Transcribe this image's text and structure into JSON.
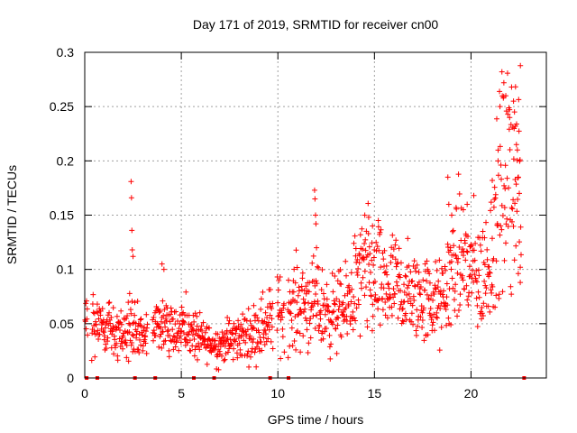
{
  "chart_data": {
    "type": "scatter",
    "title": "Day 171 of 2019, SRMTID for receiver cn00",
    "xlabel": "GPS time / hours",
    "ylabel": "SRMTID / TECUs",
    "xlim": [
      0,
      23.9
    ],
    "ylim": [
      0,
      0.3
    ],
    "xticks": [
      0,
      5,
      10,
      15,
      20
    ],
    "yticks": [
      0,
      0.05,
      0.1,
      0.15,
      0.2,
      0.25,
      0.3
    ],
    "xtick_labels": [
      "0",
      "5",
      "10",
      "15",
      "20"
    ],
    "ytick_labels": [
      "0",
      "0.05",
      "0.1",
      "0.15",
      "0.2",
      "0.25",
      "0.3"
    ],
    "grid": true,
    "marker": "plus",
    "color": "#ff0000",
    "series": [
      {
        "name": "SRMTID",
        "trend": [
          [
            0.0,
            0.055
          ],
          [
            0.5,
            0.05
          ],
          [
            1.0,
            0.042
          ],
          [
            1.5,
            0.045
          ],
          [
            2.0,
            0.04
          ],
          [
            2.5,
            0.05
          ],
          [
            3.0,
            0.035
          ],
          [
            3.5,
            0.045
          ],
          [
            4.0,
            0.052
          ],
          [
            4.5,
            0.05
          ],
          [
            5.0,
            0.047
          ],
          [
            5.5,
            0.043
          ],
          [
            6.0,
            0.035
          ],
          [
            6.5,
            0.032
          ],
          [
            7.0,
            0.03
          ],
          [
            7.5,
            0.035
          ],
          [
            8.0,
            0.038
          ],
          [
            8.5,
            0.04
          ],
          [
            9.0,
            0.045
          ],
          [
            9.5,
            0.052
          ],
          [
            10.0,
            0.06
          ],
          [
            10.5,
            0.062
          ],
          [
            11.0,
            0.068
          ],
          [
            11.5,
            0.07
          ],
          [
            12.0,
            0.065
          ],
          [
            12.5,
            0.062
          ],
          [
            13.0,
            0.06
          ],
          [
            13.5,
            0.062
          ],
          [
            14.0,
            0.085
          ],
          [
            14.5,
            0.095
          ],
          [
            15.0,
            0.09
          ],
          [
            15.5,
            0.085
          ],
          [
            16.0,
            0.085
          ],
          [
            16.5,
            0.078
          ],
          [
            17.0,
            0.075
          ],
          [
            17.5,
            0.072
          ],
          [
            18.0,
            0.07
          ],
          [
            18.5,
            0.07
          ],
          [
            19.0,
            0.1
          ],
          [
            19.5,
            0.11
          ],
          [
            20.0,
            0.1
          ],
          [
            20.5,
            0.09
          ],
          [
            21.0,
            0.11
          ],
          [
            21.5,
            0.16
          ],
          [
            22.0,
            0.19
          ],
          [
            22.5,
            0.18
          ]
        ],
        "spikes": [
          [
            2.4,
            0.181
          ],
          [
            2.42,
            0.166
          ],
          [
            2.44,
            0.136
          ],
          [
            2.46,
            0.118
          ],
          [
            2.5,
            0.112
          ],
          [
            4.0,
            0.105
          ],
          [
            4.1,
            0.1
          ],
          [
            11.9,
            0.173
          ],
          [
            11.92,
            0.165
          ],
          [
            11.95,
            0.15
          ],
          [
            11.97,
            0.142
          ],
          [
            12.0,
            0.12
          ],
          [
            14.5,
            0.15
          ],
          [
            14.7,
            0.148
          ],
          [
            14.9,
            0.14
          ],
          [
            15.2,
            0.145
          ],
          [
            18.8,
            0.185
          ],
          [
            18.85,
            0.16
          ],
          [
            19.0,
            0.15
          ],
          [
            19.6,
            0.155
          ],
          [
            19.8,
            0.16
          ],
          [
            21.1,
            0.182
          ],
          [
            21.4,
            0.2
          ],
          [
            21.5,
            0.25
          ],
          [
            21.6,
            0.282
          ],
          [
            21.7,
            0.272
          ],
          [
            21.8,
            0.26
          ],
          [
            22.0,
            0.24
          ],
          [
            22.1,
            0.268
          ],
          [
            22.2,
            0.255
          ],
          [
            22.25,
            0.245
          ],
          [
            22.3,
            0.232
          ],
          [
            22.35,
            0.215
          ],
          [
            22.4,
            0.21
          ],
          [
            22.45,
            0.185
          ],
          [
            22.5,
            0.17
          ],
          [
            22.55,
            0.102
          ],
          [
            22.55,
            0.088
          ]
        ],
        "xaxis_markers": [
          0.1,
          0.65,
          2.6,
          3.65,
          5.65,
          6.7,
          9.6,
          10.55,
          22.75
        ]
      }
    ]
  }
}
